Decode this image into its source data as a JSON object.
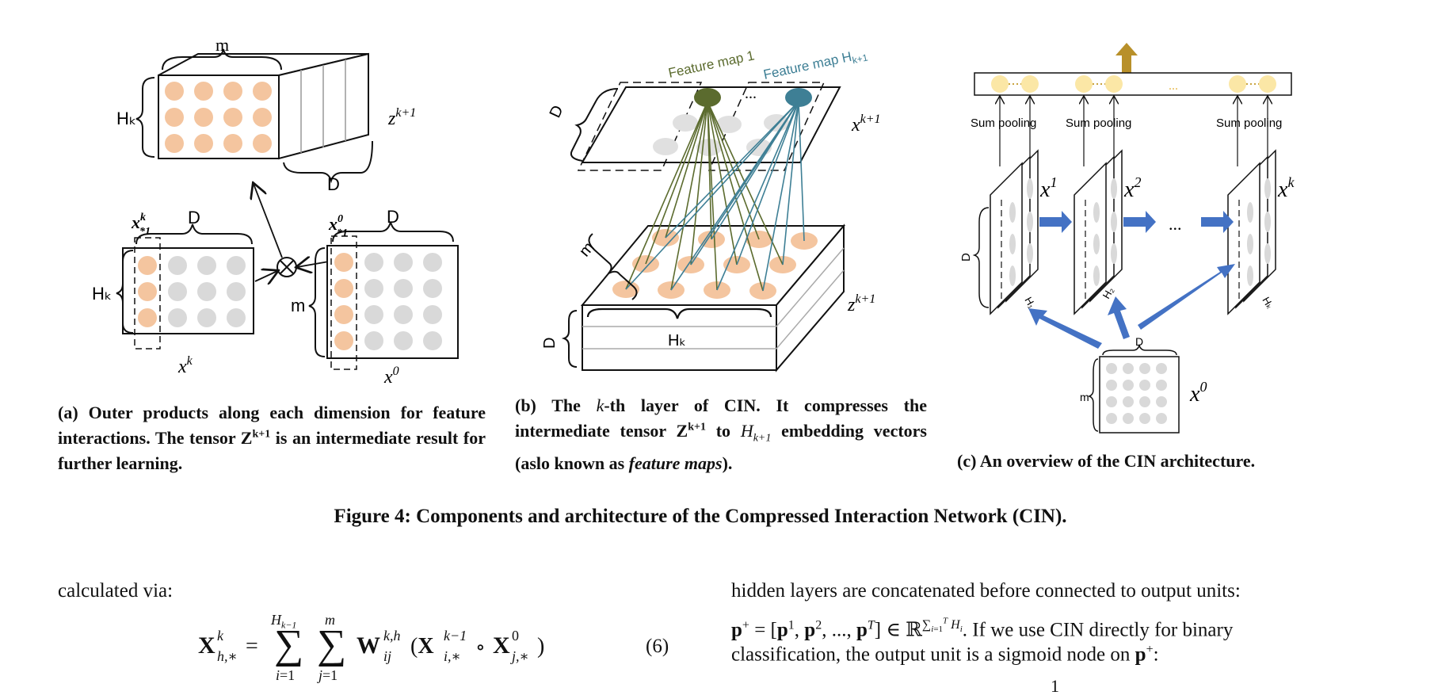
{
  "panel_a": {
    "labels": {
      "m": "m",
      "hk_top": "Hₖ",
      "zk1": "z",
      "zk1_sup": "k+1",
      "d_top": "D",
      "xk_col": "x",
      "xk_col_sub": "*1",
      "xk_col_sup": "k",
      "d_left": "D",
      "hk_left": "Hₖ",
      "xk": "x",
      "xk_sup": "k",
      "x0_col": "x",
      "x0_col_sub": "*1",
      "x0_col_sup": "0",
      "d_right": "D",
      "m_right": "m",
      "x0": "x",
      "x0_sup": "0",
      "otimes": "⊗"
    },
    "caption": {
      "prefix": "(a) Outer products along each dimension for feature interactions. The tensor Z",
      "sup": "k+1",
      "suffix": " is an intermediate result for further learning."
    }
  },
  "panel_b": {
    "labels": {
      "feature_map_1": "Feature map 1",
      "feature_map_h": "Feature map H",
      "feature_map_h_sub": "k+1",
      "ellipsis": "...",
      "d_top": "D",
      "xk1": "x",
      "xk1_sup": "k+1",
      "m": "m",
      "d_side": "D",
      "hk": "Hₖ",
      "zk1": "z",
      "zk1_sup": "k+1"
    },
    "caption": {
      "p1": "(b) The ",
      "k": "k",
      "p2": "-th layer of CIN. It compresses the intermediate tensor Z",
      "sup": "k+1",
      "p3": " to ",
      "hk1": "H",
      "hk1_sub": "k+1",
      "p4": " embedding vectors (aslo known as ",
      "fm": "feature maps",
      "p5": ")."
    }
  },
  "panel_c": {
    "labels": {
      "sum_pooling_1": "Sum pooling",
      "sum_pooling_2": "Sum pooling",
      "sum_pooling_3": "Sum pooling",
      "top_dots": "...",
      "x1": "x",
      "x1_sup": "1",
      "x2": "x",
      "x2_sup": "2",
      "xk": "x",
      "xk_sup": "k",
      "dots_mid": "...",
      "d_side": "D",
      "h1": "H₁",
      "h2": "H₂",
      "hk": "Hₖ",
      "d_bottom": "D",
      "m_bottom": "m",
      "x0": "x",
      "x0_sup": "0"
    },
    "caption": "(c) An overview of the CIN architecture."
  },
  "figure_caption": "Figure 4: Components and architecture of the Compressed Interaction Network (CIN).",
  "left_column": {
    "text": "calculated via:",
    "eq_number": "(6)"
  },
  "right_column": {
    "line1": "hidden layers are concatenated before connected to output units:",
    "line2_suffix": ". If we use CIN directly for binary",
    "line3": "classification, the output unit is a sigmoid node on ",
    "line3_end": ":",
    "fraction_num": "1"
  },
  "colors": {
    "orange_dot": "#f4c59f",
    "gray_dot": "#d9d9d9",
    "olive": "#5b6b2e",
    "teal": "#3e7f95",
    "arrow_blue": "#4472c4",
    "pool_yellow": "#fbe7a6",
    "gold_arrow": "#b8902a"
  }
}
